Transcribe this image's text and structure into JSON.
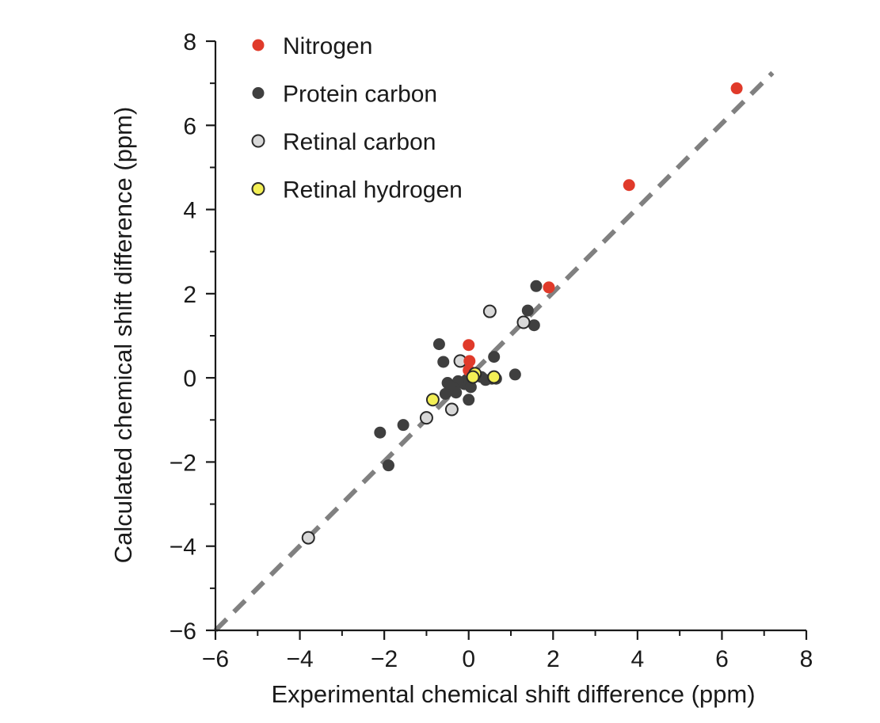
{
  "chart_data": {
    "type": "scatter",
    "xlabel": "Experimental chemical shift difference (ppm)",
    "ylabel": "Calculated chemical shift difference (ppm)",
    "xlim": [
      -6,
      8
    ],
    "ylim": [
      -6,
      8
    ],
    "x_ticks": [
      -6,
      -4,
      -2,
      0,
      2,
      4,
      6,
      8
    ],
    "y_ticks": [
      -6,
      -4,
      -2,
      0,
      2,
      4,
      6,
      8
    ],
    "x_tick_labels": [
      "−6",
      "−4",
      "−2",
      "0",
      "2",
      "4",
      "6",
      "8"
    ],
    "y_tick_labels": [
      "−6",
      "−4",
      "−2",
      "0",
      "2",
      "4",
      "6",
      "8"
    ],
    "grid": false,
    "legend_position": "top-left",
    "reference_line": {
      "from": [
        -6,
        -6
      ],
      "to": [
        7.2,
        7.25
      ],
      "style": "dashed",
      "color": "#808080"
    },
    "series": [
      {
        "name": "Nitrogen",
        "fill": "#e03a2a",
        "stroke": "none",
        "points": [
          [
            6.35,
            6.88
          ],
          [
            3.8,
            4.58
          ],
          [
            1.9,
            2.15
          ],
          [
            0.0,
            0.78
          ],
          [
            0.02,
            0.4
          ],
          [
            0.0,
            0.18
          ]
        ]
      },
      {
        "name": "Protein carbon",
        "fill": "#3f3f3f",
        "stroke": "none",
        "points": [
          [
            1.6,
            2.18
          ],
          [
            1.4,
            1.6
          ],
          [
            1.55,
            1.25
          ],
          [
            -0.7,
            0.8
          ],
          [
            -0.6,
            0.38
          ],
          [
            0.6,
            0.5
          ],
          [
            1.1,
            0.08
          ],
          [
            0.65,
            -0.02
          ],
          [
            0.55,
            -0.02
          ],
          [
            0.4,
            -0.05
          ],
          [
            0.3,
            0.02
          ],
          [
            -0.05,
            -0.05
          ],
          [
            -0.1,
            -0.15
          ],
          [
            -0.25,
            -0.08
          ],
          [
            -0.35,
            -0.25
          ],
          [
            -0.3,
            -0.35
          ],
          [
            -0.5,
            -0.12
          ],
          [
            -0.45,
            -0.2
          ],
          [
            -0.55,
            -0.38
          ],
          [
            0.05,
            -0.22
          ],
          [
            0.0,
            -0.52
          ],
          [
            -1.55,
            -1.12
          ],
          [
            -2.1,
            -1.3
          ],
          [
            -1.9,
            -2.08
          ]
        ]
      },
      {
        "name": "Retinal carbon",
        "fill": "#d9d9d9",
        "stroke": "#2a2a2a",
        "points": [
          [
            0.5,
            1.58
          ],
          [
            1.3,
            1.32
          ],
          [
            -0.2,
            0.4
          ],
          [
            -0.4,
            -0.75
          ],
          [
            -1.0,
            -0.95
          ],
          [
            -3.8,
            -3.8
          ]
        ]
      },
      {
        "name": "Retinal hydrogen",
        "fill": "#f3ef55",
        "stroke": "#2a2a2a",
        "points": [
          [
            0.15,
            0.1
          ],
          [
            0.6,
            0.02
          ],
          [
            0.1,
            0.02
          ],
          [
            -0.85,
            -0.52
          ]
        ]
      }
    ]
  }
}
